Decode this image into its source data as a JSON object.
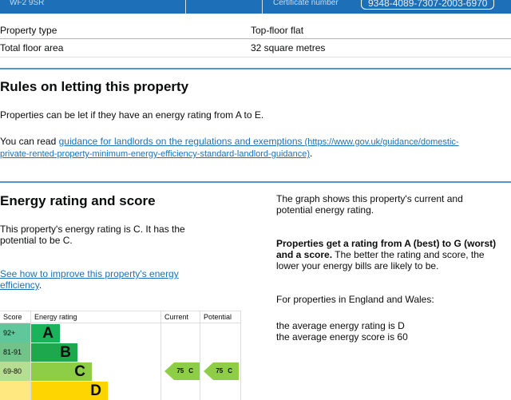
{
  "header": {
    "postcode": "WF2 9SR",
    "certificate_label": "Certificate number",
    "certificate_number": "9348-4089-7307-2003-6970"
  },
  "summary": [
    {
      "label": "Property type",
      "value": "Top-floor flat"
    },
    {
      "label": "Total floor area",
      "value": "32 square metres"
    }
  ],
  "letting": {
    "title": "Rules on letting this property",
    "para1": "Properties can be let if they have an energy rating from A to E.",
    "para2_prefix": "You can read ",
    "link_text": "guidance for landlords on the regulations and exemptions",
    "link_url_line1": " (https://www.gov.uk/guidance/domestic-",
    "link_url_line2": "private-rented-property-minimum-energy-efficiency-standard-landlord-guidance)",
    "para2_suffix": "."
  },
  "energy": {
    "title": "Energy rating and score",
    "para1": "This property's energy rating is C. It has the potential to be C.",
    "improve_link": "See how to improve this property's energy efficiency",
    "improve_suffix": ".",
    "right_para1": "The graph shows this property's current and potential energy rating.",
    "right_bold": "Properties get a rating from A (best) to G (worst) and a score.",
    "right_rest": " The better the rating and score, the lower your energy bills are likely to be.",
    "right_para3": "For properties in England and Wales:",
    "avg_rating": "the average energy rating is D",
    "avg_score": "the average energy score is 60"
  },
  "rating_table": {
    "headers": {
      "score": "Score",
      "rating": "Energy rating",
      "current": "Current",
      "potential": "Potential"
    },
    "bands": [
      {
        "score": "92+",
        "letter": "A",
        "color": "#19b459",
        "bg": "#5fc79b"
      },
      {
        "score": "81-91",
        "letter": "B",
        "color": "#1ea84d",
        "bg": "#72c38a"
      },
      {
        "score": "69-80",
        "letter": "C",
        "color": "#8dce46",
        "bg": "#b7dd93"
      },
      {
        "score": "",
        "letter": "D",
        "color": "#ffd500",
        "bg": "#ffe87f"
      }
    ],
    "current": {
      "score": "75",
      "letter": "C",
      "color": "#8dce46"
    },
    "potential": {
      "score": "75",
      "letter": "C",
      "color": "#8dce46"
    }
  }
}
